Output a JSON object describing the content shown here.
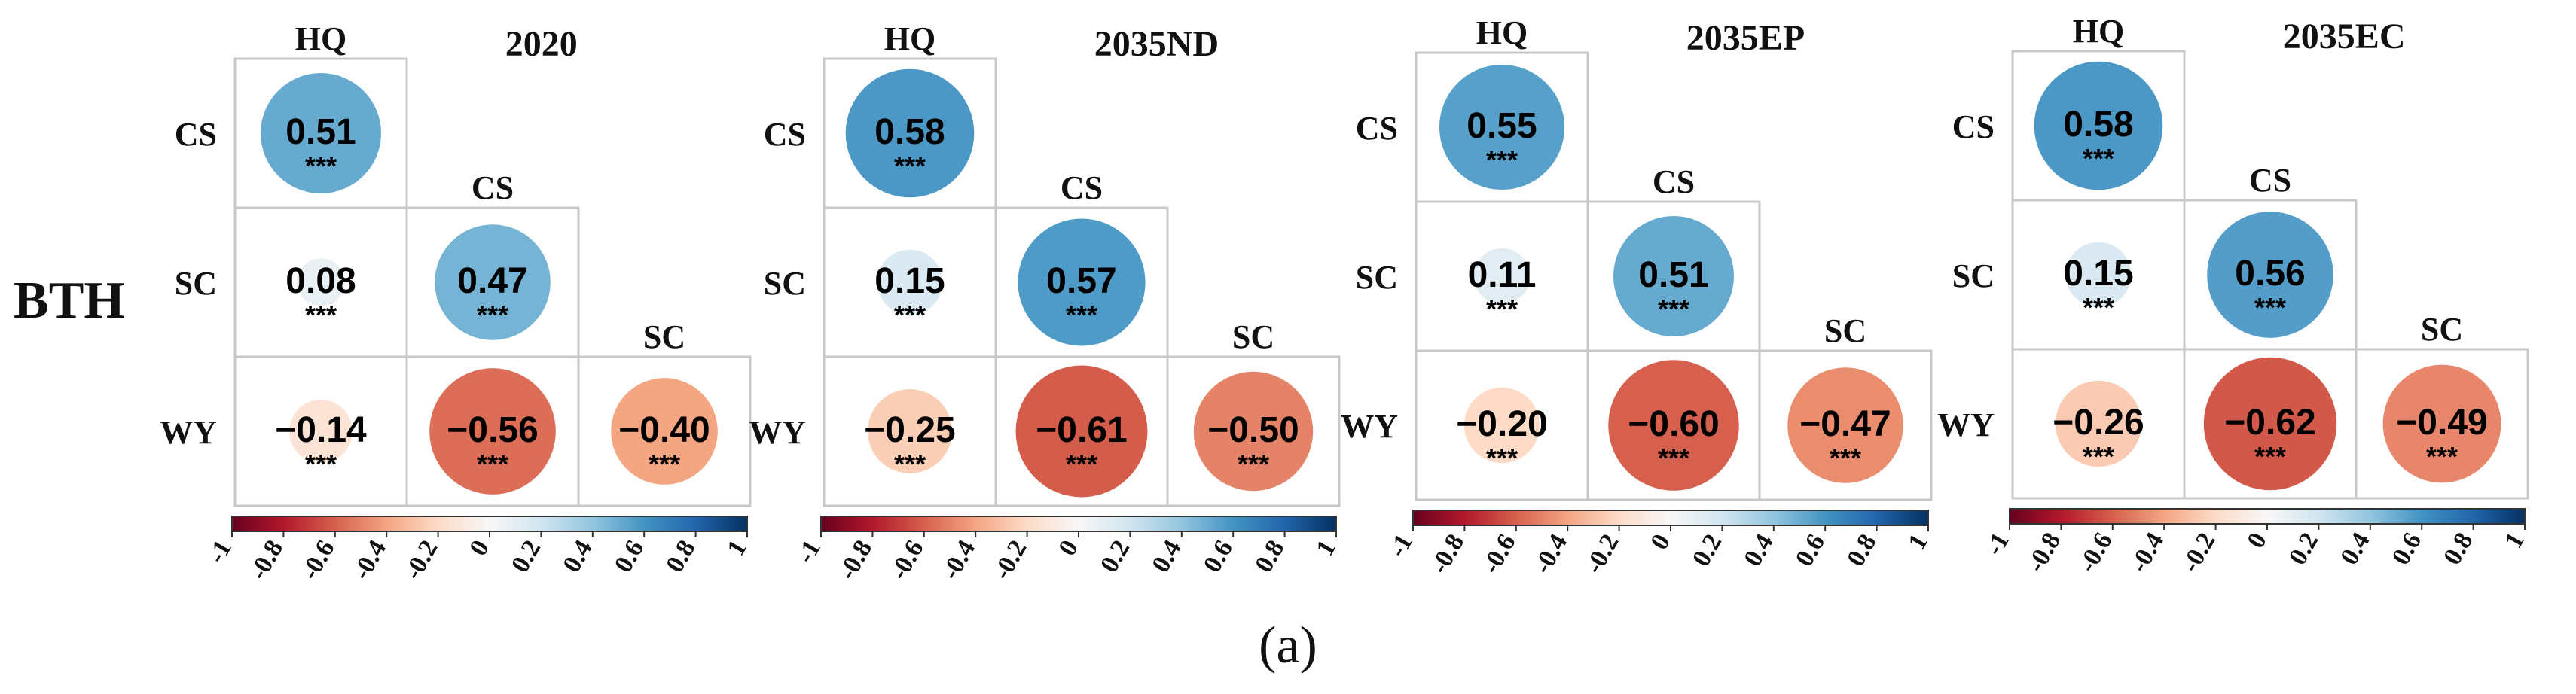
{
  "region_label": "BTH",
  "caption": "(a)",
  "chart_data": [
    {
      "type": "heatmap",
      "title": "2020",
      "row_labels": [
        "CS",
        "SC",
        "WY"
      ],
      "col_labels": [
        "HQ",
        "CS",
        "SC"
      ],
      "cells": [
        {
          "row": "CS",
          "col": "HQ",
          "value": 0.51,
          "text": "0.51",
          "sig": "***"
        },
        {
          "row": "SC",
          "col": "HQ",
          "value": 0.08,
          "text": "0.08",
          "sig": "***"
        },
        {
          "row": "SC",
          "col": "CS",
          "value": 0.47,
          "text": "0.47",
          "sig": "***"
        },
        {
          "row": "WY",
          "col": "HQ",
          "value": -0.14,
          "text": "−0.14",
          "sig": "***"
        },
        {
          "row": "WY",
          "col": "CS",
          "value": -0.56,
          "text": "−0.56",
          "sig": "***"
        },
        {
          "row": "WY",
          "col": "SC",
          "value": -0.4,
          "text": "−0.40",
          "sig": "***"
        }
      ],
      "colorbar": {
        "range": [
          -1,
          1
        ],
        "ticks": [
          "-1",
          "-0.8",
          "-0.6",
          "-0.4",
          "-0.2",
          "0",
          "0.2",
          "0.4",
          "0.6",
          "0.8",
          "1"
        ]
      }
    },
    {
      "type": "heatmap",
      "title": "2035ND",
      "row_labels": [
        "CS",
        "SC",
        "WY"
      ],
      "col_labels": [
        "HQ",
        "CS",
        "SC"
      ],
      "cells": [
        {
          "row": "CS",
          "col": "HQ",
          "value": 0.58,
          "text": "0.58",
          "sig": "***"
        },
        {
          "row": "SC",
          "col": "HQ",
          "value": 0.15,
          "text": "0.15",
          "sig": "***"
        },
        {
          "row": "SC",
          "col": "CS",
          "value": 0.57,
          "text": "0.57",
          "sig": "***"
        },
        {
          "row": "WY",
          "col": "HQ",
          "value": -0.25,
          "text": "−0.25",
          "sig": "***"
        },
        {
          "row": "WY",
          "col": "CS",
          "value": -0.61,
          "text": "−0.61",
          "sig": "***"
        },
        {
          "row": "WY",
          "col": "SC",
          "value": -0.5,
          "text": "−0.50",
          "sig": "***"
        }
      ],
      "colorbar": {
        "range": [
          -1,
          1
        ],
        "ticks": [
          "-1",
          "-0.8",
          "-0.6",
          "-0.4",
          "-0.2",
          "0",
          "0.2",
          "0.4",
          "0.6",
          "0.8",
          "1"
        ]
      }
    },
    {
      "type": "heatmap",
      "title": "2035EP",
      "row_labels": [
        "CS",
        "SC",
        "WY"
      ],
      "col_labels": [
        "HQ",
        "CS",
        "SC"
      ],
      "cells": [
        {
          "row": "CS",
          "col": "HQ",
          "value": 0.55,
          "text": "0.55",
          "sig": "***"
        },
        {
          "row": "SC",
          "col": "HQ",
          "value": 0.11,
          "text": "0.11",
          "sig": "***"
        },
        {
          "row": "SC",
          "col": "CS",
          "value": 0.51,
          "text": "0.51",
          "sig": "***"
        },
        {
          "row": "WY",
          "col": "HQ",
          "value": -0.2,
          "text": "−0.20",
          "sig": "***"
        },
        {
          "row": "WY",
          "col": "CS",
          "value": -0.6,
          "text": "−0.60",
          "sig": "***"
        },
        {
          "row": "WY",
          "col": "SC",
          "value": -0.47,
          "text": "−0.47",
          "sig": "***"
        }
      ],
      "colorbar": {
        "range": [
          -1,
          1
        ],
        "ticks": [
          "-1",
          "-0.8",
          "-0.6",
          "-0.4",
          "-0.2",
          "0",
          "0.2",
          "0.4",
          "0.6",
          "0.8",
          "1"
        ]
      }
    },
    {
      "type": "heatmap",
      "title": "2035EC",
      "row_labels": [
        "CS",
        "SC",
        "WY"
      ],
      "col_labels": [
        "HQ",
        "CS",
        "SC"
      ],
      "cells": [
        {
          "row": "CS",
          "col": "HQ",
          "value": 0.58,
          "text": "0.58",
          "sig": "***"
        },
        {
          "row": "SC",
          "col": "HQ",
          "value": 0.15,
          "text": "0.15",
          "sig": "***"
        },
        {
          "row": "SC",
          "col": "CS",
          "value": 0.56,
          "text": "0.56",
          "sig": "***"
        },
        {
          "row": "WY",
          "col": "HQ",
          "value": -0.26,
          "text": "−0.26",
          "sig": "***"
        },
        {
          "row": "WY",
          "col": "CS",
          "value": -0.62,
          "text": "−0.62",
          "sig": "***"
        },
        {
          "row": "WY",
          "col": "SC",
          "value": -0.49,
          "text": "−0.49",
          "sig": "***"
        }
      ],
      "colorbar": {
        "range": [
          -1,
          1
        ],
        "ticks": [
          "-1",
          "-0.8",
          "-0.6",
          "-0.4",
          "-0.2",
          "0",
          "0.2",
          "0.4",
          "0.6",
          "0.8",
          "1"
        ]
      }
    }
  ]
}
